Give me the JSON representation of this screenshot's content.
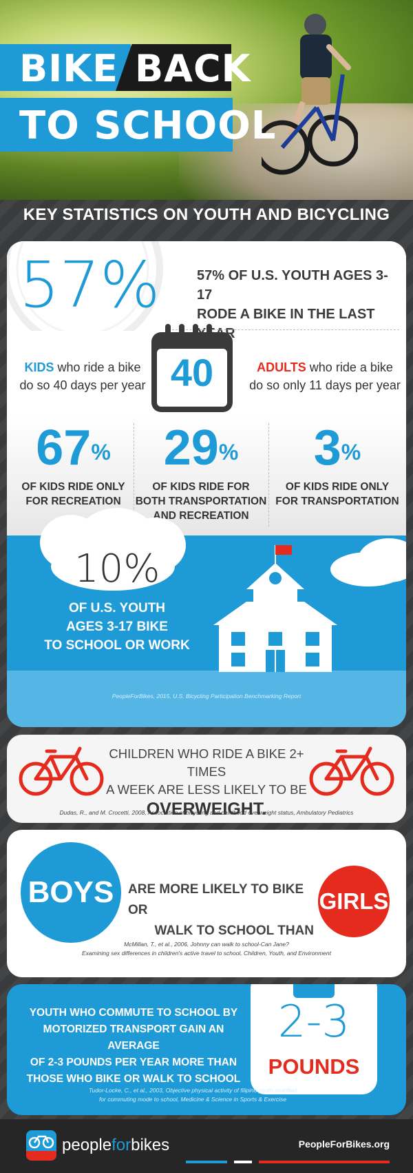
{
  "header": {
    "title_word1": "BIKE",
    "title_word2": "BACK",
    "title_line2": "TO SCHOOL",
    "subtitle": "KEY STATISTICS ON YOUTH AND BICYCLING"
  },
  "stat_57": {
    "value": "57%",
    "text_line1": "57% OF U.S. YOUTH AGES 3-17",
    "text_line2": "RODE A BIKE IN THE LAST YEAR"
  },
  "days": {
    "kids_keyword": "KIDS",
    "kids_line1_rest": " who ride a bike",
    "kids_line2": "do so 40 days per year",
    "calendar_value": "40",
    "adults_keyword": "ADULTS",
    "adults_line1_rest": " who ride a bike",
    "adults_line2": "do so only 11 days per year"
  },
  "ride_purpose": [
    {
      "value": "67",
      "unit": "%",
      "line1": "OF KIDS RIDE ONLY",
      "line2": "FOR RECREATION",
      "line3": ""
    },
    {
      "value": "29",
      "unit": "%",
      "line1": "OF KIDS RIDE FOR",
      "line2": "BOTH TRANSPORTATION",
      "line3": "AND RECREATION"
    },
    {
      "value": "3",
      "unit": "%",
      "line1": "OF KIDS RIDE ONLY",
      "line2": "FOR TRANSPORTATION",
      "line3": ""
    }
  ],
  "school_stat": {
    "value": "10%",
    "line1": "OF U.S. YOUTH",
    "line2": "AGES 3-17 BIKE",
    "line3": "TO SCHOOL OR WORK",
    "citation": "PeopleForBikes, 2015, U.S. Bicycling Participation Benchmarking Report"
  },
  "overweight": {
    "line1": "CHILDREN WHO RIDE A BIKE 2+ TIMES",
    "line2": "A WEEK ARE LESS LIKELY TO BE",
    "emphasis": "OVERWEIGHT.",
    "citation": "Dudas, R., and M. Crocetti, 2008, Association of bicycling and childhood overweight status, Ambulatory Pediatrics"
  },
  "gender": {
    "boys": "BOYS",
    "line1": "ARE MORE LIKELY TO BIKE OR",
    "line2": "WALK TO SCHOOL THAN",
    "girls": "GIRLS",
    "citation_line1": "McMillan, T., et al., 2006, Johnny can walk to school-Can Jane?",
    "citation_line2": "Examining sex differences in children's active travel to school, Children, Youth, and Environment"
  },
  "weight_gain": {
    "line1": "YOUTH WHO COMMUTE TO SCHOOL BY",
    "line2": "MOTORIZED TRANSPORT GAIN AN AVERAGE",
    "line3": "OF 2-3 POUNDS PER YEAR MORE THAN",
    "line4": "THOSE WHO BIKE OR WALK TO SCHOOL",
    "value": "2-3",
    "unit": "POUNDS",
    "citation_line1": "Tudor-Locke, C., et al., 2003, Objective physical activity of filipino youth stratified",
    "citation_line2": "for commuting mode to school, Medicine & Science in Sports & Exercise"
  },
  "footer": {
    "brand_people": "people",
    "brand_for": "for",
    "brand_bikes": "bikes",
    "url": "PeopleForBikes.org"
  },
  "colors": {
    "accent_blue": "#1e9bd7",
    "accent_red": "#e52a1e",
    "dark": "#262626"
  }
}
